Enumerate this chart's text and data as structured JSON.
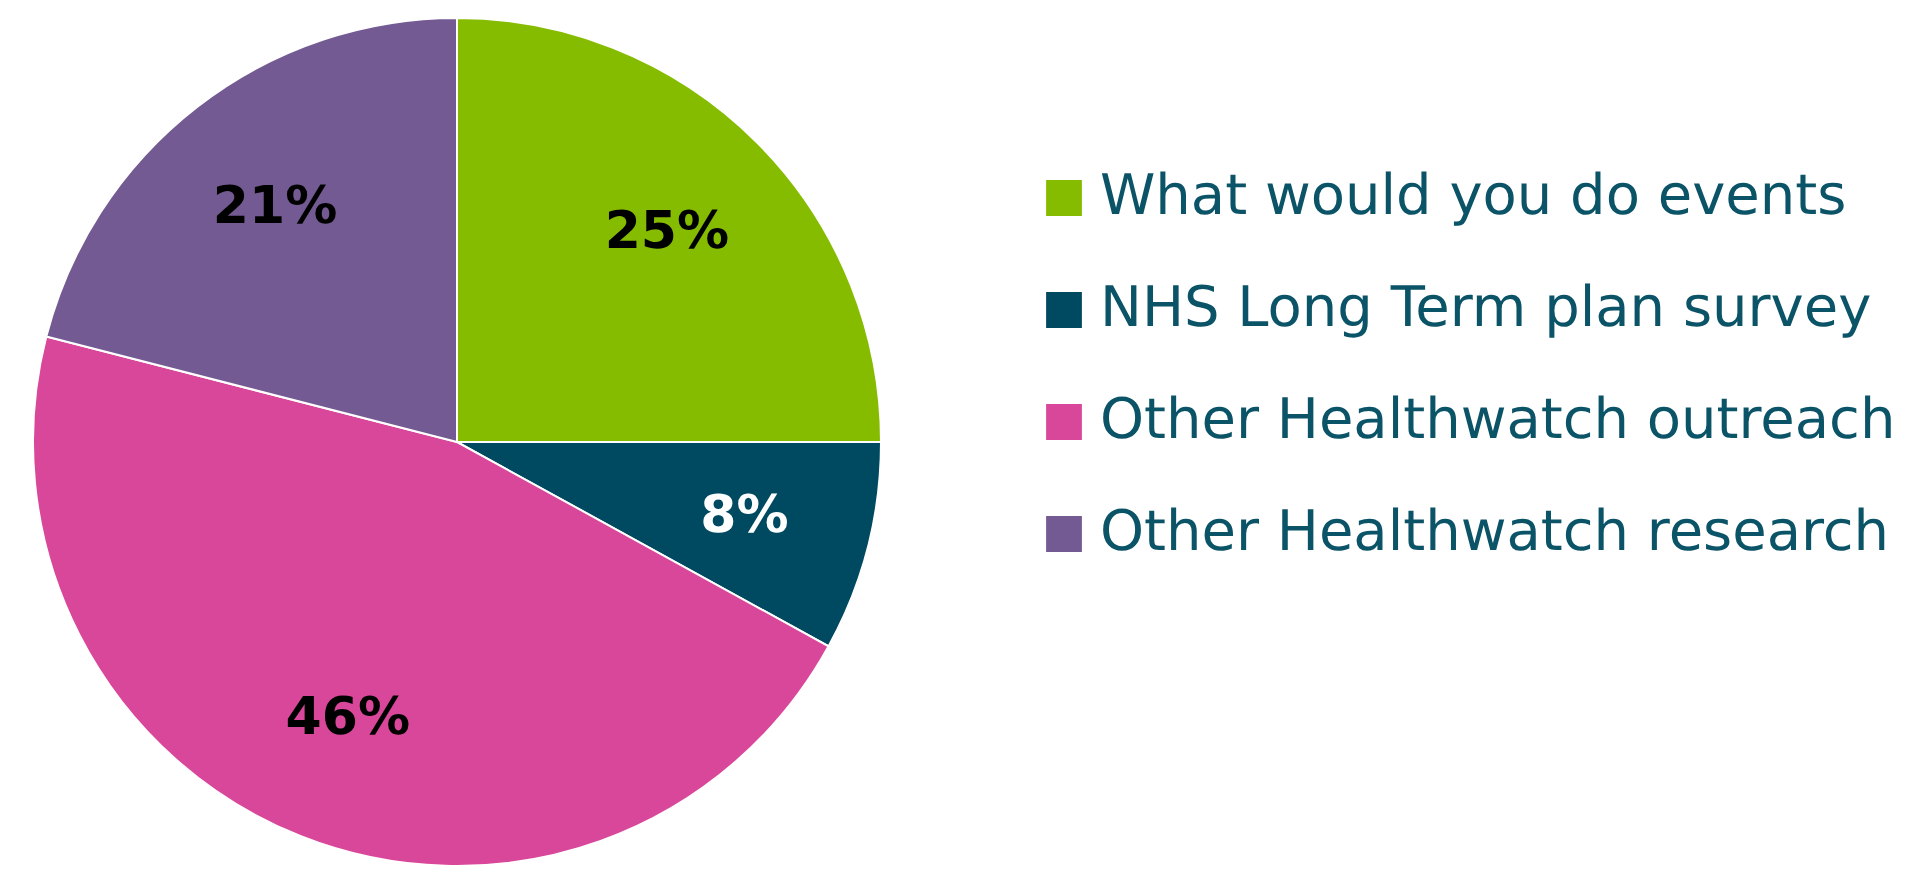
{
  "chart_data": {
    "type": "pie",
    "categories": [
      "What would you do events",
      "NHS Long Term plan survey",
      "Other Healthwatch outreach",
      "Other Healthwatch research"
    ],
    "values": [
      25,
      8,
      46,
      21
    ],
    "colors": [
      "#86bc00",
      "#004a61",
      "#d9479a",
      "#735a92"
    ],
    "value_labels": [
      "25%",
      "8%",
      "46%",
      "21%"
    ],
    "legend": "right"
  }
}
